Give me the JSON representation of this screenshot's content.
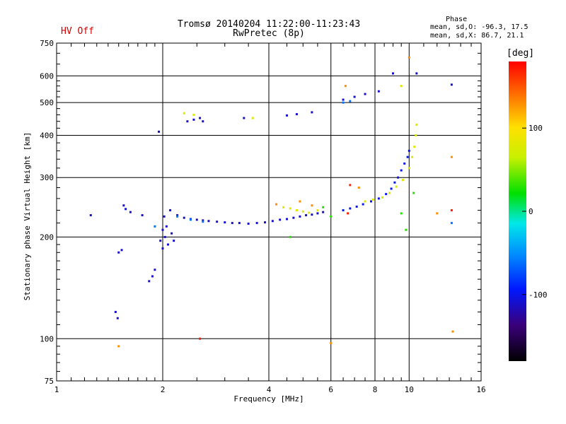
{
  "header": {
    "title_line1": "Tromsø 20140204 11:22:00-11:23:43",
    "title_line2": "RwPretec (8p)",
    "status": "HV Off",
    "stats_heading": "Phase",
    "stats_O": "mean, sd,O: -96.3, 17.5",
    "stats_X": "mean, sd,X:  86.7, 21.1"
  },
  "colorbar": {
    "unit": "[deg]",
    "ticks": [
      {
        "value": 100,
        "label": "100"
      },
      {
        "value": 0,
        "label": "0"
      },
      {
        "value": -100,
        "label": "-100"
      }
    ],
    "range": [
      -180,
      180
    ]
  },
  "colors": {
    "axis": "#000000",
    "status": "#d40000"
  },
  "chart_data": {
    "type": "scatter",
    "xlabel": "Frequency [MHz]",
    "ylabel": "Stationary phase Virtual Height [km]",
    "xscale": "log",
    "yscale": "log",
    "xlim": [
      1,
      16
    ],
    "ylim": [
      75,
      750
    ],
    "grid": true,
    "xticks": [
      {
        "value": 1,
        "label": "1"
      },
      {
        "value": 2,
        "label": "2"
      },
      {
        "value": 4,
        "label": "4"
      },
      {
        "value": 6,
        "label": "6"
      },
      {
        "value": 8,
        "label": "8"
      },
      {
        "value": 10,
        "label": "10"
      },
      {
        "value": 16,
        "label": "16"
      }
    ],
    "yticks": [
      {
        "value": 75,
        "label": "75"
      },
      {
        "value": 100,
        "label": "100"
      },
      {
        "value": 200,
        "label": "200"
      },
      {
        "value": 300,
        "label": "300"
      },
      {
        "value": 400,
        "label": "400"
      },
      {
        "value": 500,
        "label": "500"
      },
      {
        "value": 600,
        "label": "600"
      },
      {
        "value": 750,
        "label": "750"
      }
    ],
    "series": [
      {
        "points": [
          [
            1.25,
            232,
            -110
          ],
          [
            1.5,
            180,
            -110
          ],
          [
            1.53,
            183,
            -110
          ],
          [
            1.47,
            120,
            -110
          ],
          [
            1.49,
            115,
            -110
          ],
          [
            1.55,
            248,
            -110
          ],
          [
            1.57,
            242,
            -110
          ],
          [
            1.62,
            237,
            -110
          ],
          [
            1.75,
            232,
            -110
          ],
          [
            1.83,
            148,
            -110
          ],
          [
            1.87,
            153,
            -110
          ],
          [
            1.9,
            160,
            -110
          ],
          [
            1.95,
            410,
            -110
          ],
          [
            1.97,
            195,
            -110
          ],
          [
            2.0,
            210,
            -110
          ],
          [
            2.0,
            185,
            -110
          ],
          [
            2.02,
            230,
            -110
          ],
          [
            2.03,
            200,
            -110
          ],
          [
            2.05,
            215,
            -110
          ],
          [
            2.07,
            190,
            -110
          ],
          [
            2.1,
            240,
            -110
          ],
          [
            2.12,
            205,
            -110
          ],
          [
            2.15,
            195,
            -110
          ],
          [
            2.2,
            232,
            -110
          ],
          [
            2.3,
            228,
            -110
          ],
          [
            2.4,
            226,
            -110
          ],
          [
            2.5,
            225,
            -110
          ],
          [
            2.6,
            224,
            -110
          ],
          [
            2.7,
            223,
            -110
          ],
          [
            2.85,
            222,
            -110
          ],
          [
            3.0,
            221,
            -110
          ],
          [
            3.15,
            220,
            -110
          ],
          [
            3.3,
            220,
            -110
          ],
          [
            3.5,
            219,
            -110
          ],
          [
            3.7,
            220,
            -110
          ],
          [
            3.9,
            221,
            -110
          ],
          [
            4.1,
            223,
            -110
          ],
          [
            4.3,
            225,
            -110
          ],
          [
            4.5,
            226,
            -110
          ],
          [
            4.7,
            228,
            -110
          ],
          [
            4.9,
            230,
            -110
          ],
          [
            5.1,
            232,
            -110
          ],
          [
            5.3,
            233,
            -110
          ],
          [
            5.5,
            235,
            -110
          ],
          [
            5.7,
            237,
            -110
          ],
          [
            2.35,
            440,
            -110
          ],
          [
            2.45,
            445,
            -110
          ],
          [
            2.55,
            450,
            -110
          ],
          [
            2.6,
            440,
            -110
          ],
          [
            3.4,
            450,
            -110
          ],
          [
            4.5,
            458,
            -110
          ],
          [
            4.8,
            462,
            -110
          ],
          [
            5.3,
            468,
            -110
          ],
          [
            6.5,
            510,
            -110
          ],
          [
            7.0,
            520,
            -110
          ],
          [
            7.5,
            530,
            -110
          ],
          [
            8.2,
            540,
            -110
          ],
          [
            9.0,
            610,
            -110
          ],
          [
            10.5,
            610,
            -110
          ],
          [
            13.2,
            565,
            -110
          ]
        ]
      },
      {
        "points": [
          [
            6.5,
            240,
            -100
          ],
          [
            6.8,
            243,
            -100
          ],
          [
            7.1,
            246,
            -100
          ],
          [
            7.4,
            250,
            -100
          ],
          [
            7.8,
            255,
            -100
          ],
          [
            8.2,
            260,
            -100
          ],
          [
            8.6,
            268,
            -100
          ],
          [
            8.9,
            278,
            -100
          ],
          [
            9.1,
            290,
            -100
          ],
          [
            9.3,
            300,
            -100
          ],
          [
            9.5,
            315,
            -100
          ],
          [
            9.7,
            330,
            -100
          ],
          [
            9.9,
            345,
            -100
          ],
          [
            10.0,
            360,
            -100
          ]
        ]
      },
      {
        "points": [
          [
            2.2,
            230,
            -60
          ],
          [
            2.4,
            225,
            -60
          ],
          [
            2.6,
            222,
            -60
          ],
          [
            6.5,
            500,
            -60
          ],
          [
            6.8,
            505,
            -60
          ],
          [
            13.2,
            220,
            -60
          ],
          [
            1.9,
            215,
            -60
          ]
        ]
      },
      {
        "points": [
          [
            4.4,
            245,
            80
          ],
          [
            4.6,
            243,
            80
          ],
          [
            4.8,
            240,
            80
          ],
          [
            5.0,
            238,
            80
          ],
          [
            5.2,
            236,
            80
          ],
          [
            5.5,
            240,
            80
          ],
          [
            7.5,
            255,
            80
          ],
          [
            7.9,
            258,
            80
          ],
          [
            8.4,
            262,
            80
          ],
          [
            8.8,
            270,
            80
          ],
          [
            9.2,
            282,
            80
          ],
          [
            9.6,
            295,
            80
          ],
          [
            10.0,
            320,
            80
          ],
          [
            10.2,
            345,
            80
          ],
          [
            10.35,
            370,
            80
          ],
          [
            10.45,
            400,
            80
          ],
          [
            10.5,
            430,
            80
          ],
          [
            2.3,
            465,
            80
          ],
          [
            2.45,
            460,
            80
          ],
          [
            3.6,
            450,
            80
          ],
          [
            9.5,
            560,
            80
          ]
        ]
      },
      {
        "points": [
          [
            4.6,
            200,
            30
          ],
          [
            5.7,
            245,
            30
          ],
          [
            6.0,
            230,
            30
          ],
          [
            9.5,
            235,
            30
          ],
          [
            9.8,
            210,
            30
          ],
          [
            10.3,
            270,
            30
          ]
        ]
      },
      {
        "points": [
          [
            6.6,
            560,
            130
          ],
          [
            7.2,
            280,
            130
          ],
          [
            13.2,
            345,
            130
          ],
          [
            12.0,
            235,
            130
          ],
          [
            1.5,
            95,
            130
          ],
          [
            6.0,
            97,
            130
          ],
          [
            10.0,
            680,
            130
          ],
          [
            13.3,
            105,
            130
          ],
          [
            4.2,
            250,
            130
          ],
          [
            4.9,
            255,
            130
          ],
          [
            5.3,
            248,
            130
          ]
        ]
      },
      {
        "points": [
          [
            6.7,
            235,
            170
          ],
          [
            13.2,
            240,
            170
          ],
          [
            2.55,
            100,
            170
          ],
          [
            6.8,
            285,
            170
          ]
        ]
      }
    ]
  }
}
